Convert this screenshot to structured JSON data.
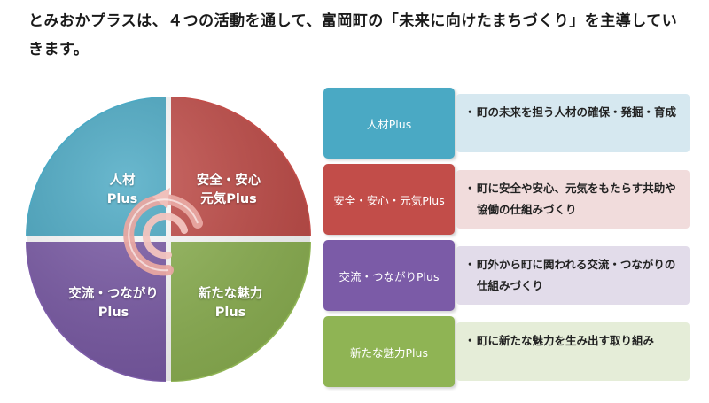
{
  "intro": "とみおかプラスは、４つの活動を通して、富岡町の「未来に向けたまちづくり」を主導していきます。",
  "wheel": {
    "quadrants": [
      {
        "id": "jinzai",
        "line1": "人材",
        "line2": "Plus",
        "color": "#4aa9c4"
      },
      {
        "id": "anzen",
        "line1": "安全・安心",
        "line2": "元気Plus",
        "color": "#c24d49"
      },
      {
        "id": "koryu",
        "line1": "交流・つながり",
        "line2": "Plus",
        "color": "#7b5ba7"
      },
      {
        "id": "miryoku",
        "line1": "新たな魅力",
        "line2": "Plus",
        "color": "#8fb454"
      }
    ]
  },
  "rows": [
    {
      "tag": "人材Plus",
      "bullet": "・",
      "desc": "町の未来を担う人材の確保・発掘・育成",
      "tag_color": "#4aa9c4",
      "desc_bg": "#d6e8f0"
    },
    {
      "tag": "安全・安心・元気Plus",
      "bullet": "・",
      "desc": "町に安全や安心、元気をもたらす共助や協働の仕組みづくり",
      "tag_color": "#c24d49",
      "desc_bg": "#f1dcdc"
    },
    {
      "tag": "交流・つながりPlus",
      "bullet": "・",
      "desc": "町外から町に関われる交流・つながりの仕組みづくり",
      "tag_color": "#7b5ba7",
      "desc_bg": "#e2dcea"
    },
    {
      "tag": "新たな魅力Plus",
      "bullet": "・",
      "desc": "町に新たな魅力を生み出す取り組み",
      "tag_color": "#8fb454",
      "desc_bg": "#e5edd8"
    }
  ]
}
